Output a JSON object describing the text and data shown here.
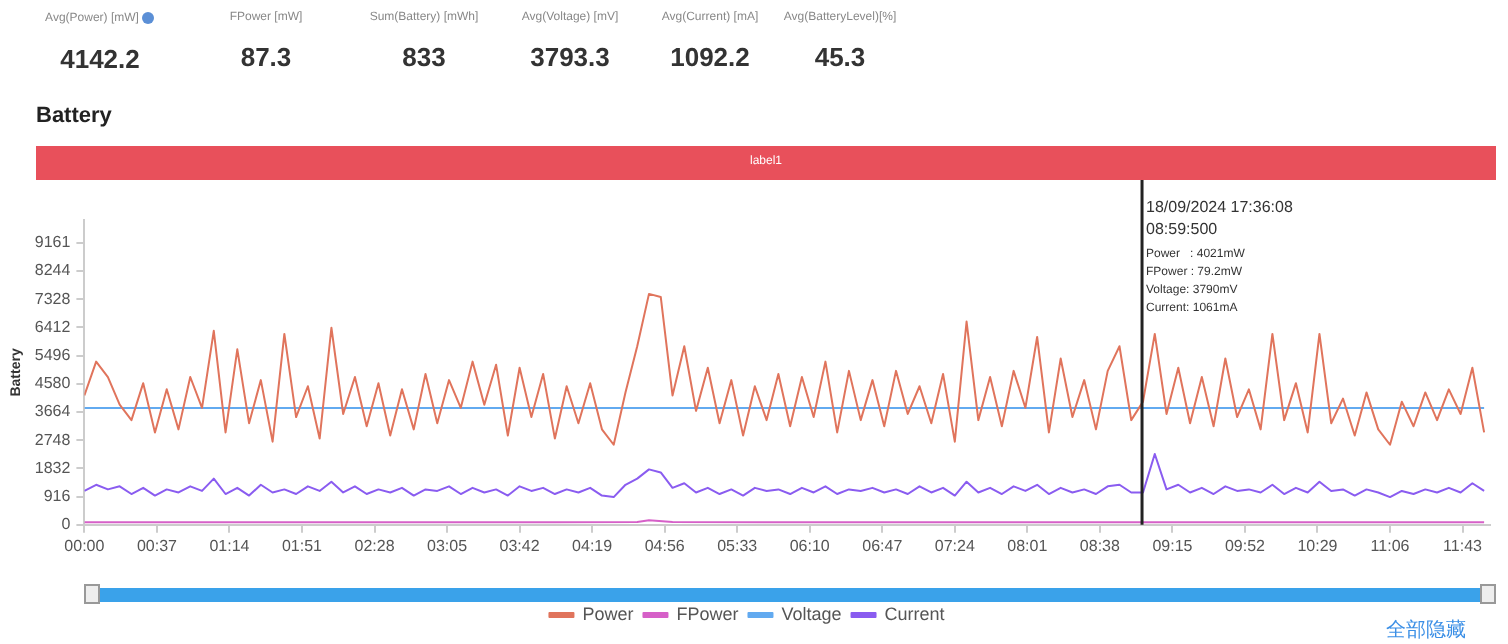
{
  "chart_data": {
    "type": "line",
    "title": "Battery",
    "ylabel": "Battery",
    "annotations": [
      "Avg(Power) [mW]",
      "FPower [mW]",
      "Sum(Battery) [mWh]",
      "Avg(Voltage) [mV]",
      "Avg(Current) [mA]",
      "Avg(BatteryLevel)[%]",
      "4142.2",
      "87.3",
      "833",
      "3793.3",
      "1092.2",
      "45.3",
      "label1",
      "全部隐藏",
      "18/09/2024 17:36:08",
      "08:59:500",
      "Power   : 4021mW",
      "FPower : 79.2mW",
      "Voltage: 3790mV",
      "Current: 1061mA"
    ],
    "x": [
      0,
      6,
      12,
      18,
      24,
      30,
      36,
      42,
      48,
      54,
      60,
      66,
      72,
      78,
      84,
      90,
      96,
      102,
      108,
      114,
      120,
      126,
      132,
      138,
      144,
      150,
      156,
      162,
      168,
      174,
      180,
      186,
      192,
      198,
      204,
      210,
      216,
      222,
      228,
      234,
      240,
      246,
      252,
      258,
      264,
      270,
      276,
      282,
      288,
      294,
      300,
      306,
      312,
      318,
      324,
      330,
      336,
      342,
      348,
      354,
      360,
      366,
      372,
      378,
      384,
      390,
      396,
      402,
      408,
      414,
      420,
      426,
      432,
      438,
      444,
      450,
      456,
      462,
      468,
      474,
      480,
      486,
      492,
      498,
      504,
      510,
      516,
      522,
      528,
      534,
      540,
      546,
      552,
      558,
      564,
      570,
      576,
      582,
      588,
      594,
      600,
      606,
      612,
      618,
      624,
      630,
      636,
      642,
      648,
      654,
      660,
      666,
      672,
      678,
      684,
      690,
      696,
      702,
      708,
      714
    ],
    "xlim": [
      0,
      717
    ],
    "xticks": [
      {
        "value": 0,
        "label": "00:00"
      },
      {
        "value": 37,
        "label": "00:37"
      },
      {
        "value": 74,
        "label": "01:14"
      },
      {
        "value": 111,
        "label": "01:51"
      },
      {
        "value": 148,
        "label": "02:28"
      },
      {
        "value": 185,
        "label": "03:05"
      },
      {
        "value": 222,
        "label": "03:42"
      },
      {
        "value": 259,
        "label": "04:19"
      },
      {
        "value": 296,
        "label": "04:56"
      },
      {
        "value": 333,
        "label": "05:33"
      },
      {
        "value": 370,
        "label": "06:10"
      },
      {
        "value": 407,
        "label": "06:47"
      },
      {
        "value": 444,
        "label": "07:24"
      },
      {
        "value": 481,
        "label": "08:01"
      },
      {
        "value": 518,
        "label": "08:38"
      },
      {
        "value": 555,
        "label": "09:15"
      },
      {
        "value": 592,
        "label": "09:52"
      },
      {
        "value": 629,
        "label": "10:29"
      },
      {
        "value": 666,
        "label": "11:06"
      },
      {
        "value": 703,
        "label": "11:43"
      }
    ],
    "ylim": [
      0,
      9900
    ],
    "yticks": [
      0,
      916,
      1832,
      2748,
      3664,
      4580,
      5496,
      6412,
      7328,
      8244,
      9161
    ],
    "grid": false,
    "legend": "bottom",
    "marker": "none",
    "line_style": "solid",
    "ref_lines": [
      {
        "axis": "x",
        "value": 539.5,
        "color": "#222222"
      }
    ],
    "series": [
      {
        "name": "Power",
        "color": "#e0745c",
        "values": [
          4200,
          5300,
          4800,
          3900,
          3400,
          4600,
          3000,
          4400,
          3100,
          4800,
          3800,
          6300,
          3000,
          5700,
          3300,
          4700,
          2700,
          6200,
          3500,
          4500,
          2800,
          6400,
          3600,
          4800,
          3200,
          4600,
          2900,
          4400,
          3100,
          4900,
          3300,
          4700,
          3800,
          5300,
          3900,
          5200,
          2900,
          5100,
          3500,
          4900,
          2800,
          4500,
          3300,
          4600,
          3100,
          2600,
          4300,
          5800,
          7500,
          7400,
          4200,
          5800,
          3700,
          5100,
          3300,
          4700,
          2900,
          4500,
          3400,
          4900,
          3200,
          4800,
          3500,
          5300,
          3000,
          5000,
          3400,
          4700,
          3200,
          5000,
          3600,
          4500,
          3300,
          4900,
          2700,
          6600,
          3400,
          4800,
          3200,
          5000,
          3800,
          6100,
          3000,
          5400,
          3500,
          4700,
          3100,
          5000,
          5800,
          3400,
          4000,
          6200,
          3600,
          5100,
          3300,
          4800,
          3200,
          5400,
          3500,
          4400,
          3100,
          6200,
          3400,
          4600,
          3000,
          6200,
          3300,
          4100,
          2900,
          4300,
          3100,
          2600,
          4000,
          3200,
          4300,
          3400,
          4400,
          3600,
          5100,
          3000
        ]
      },
      {
        "name": "FPower",
        "color": "#d660c8",
        "x": [
          0,
          60,
          120,
          180,
          240,
          282,
          288,
          300,
          360,
          420,
          480,
          540,
          600,
          660,
          714
        ],
        "values": [
          80,
          80,
          80,
          80,
          80,
          90,
          150,
          90,
          80,
          80,
          80,
          80,
          80,
          80,
          80
        ]
      },
      {
        "name": "Voltage",
        "color": "#62aaf0",
        "x": [
          0,
          714
        ],
        "values": [
          3790,
          3790
        ]
      },
      {
        "name": "Current",
        "color": "#8a5cf0",
        "values": [
          1100,
          1300,
          1150,
          1250,
          1000,
          1200,
          950,
          1150,
          1050,
          1250,
          1100,
          1500,
          1000,
          1200,
          950,
          1300,
          1050,
          1150,
          1000,
          1250,
          1100,
          1400,
          1050,
          1250,
          1000,
          1150,
          1050,
          1200,
          950,
          1150,
          1100,
          1250,
          1000,
          1200,
          1050,
          1150,
          950,
          1250,
          1100,
          1200,
          1000,
          1150,
          1050,
          1200,
          950,
          900,
          1300,
          1500,
          1800,
          1700,
          1200,
          1350,
          1050,
          1200,
          1000,
          1150,
          950,
          1200,
          1100,
          1150,
          1000,
          1200,
          1050,
          1250,
          1000,
          1150,
          1100,
          1200,
          1050,
          1150,
          1000,
          1250,
          1050,
          1200,
          950,
          1400,
          1050,
          1200,
          1000,
          1250,
          1100,
          1300,
          1000,
          1200,
          1050,
          1150,
          1000,
          1250,
          1300,
          1050,
          1050,
          2300,
          1150,
          1300,
          1050,
          1200,
          1000,
          1250,
          1100,
          1150,
          1050,
          1300,
          1000,
          1200,
          1050,
          1400,
          1100,
          1150,
          950,
          1150,
          1050,
          900,
          1100,
          1000,
          1150,
          1050,
          1200,
          1050,
          1350,
          1100
        ]
      }
    ]
  }
}
